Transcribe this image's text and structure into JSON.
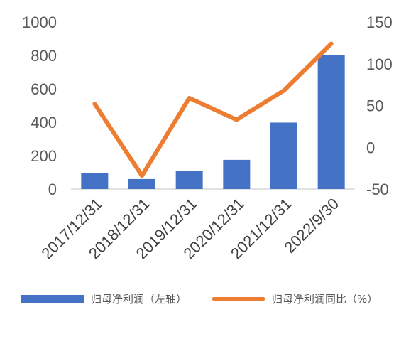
{
  "chart_data": {
    "type": "bar",
    "categories": [
      "2017/12/31",
      "2018/12/31",
      "2019/12/31",
      "2020/12/31",
      "2021/12/31",
      "2022/9/30"
    ],
    "series": [
      {
        "name": "归母净利润（左轴）",
        "type": "bar",
        "axis": "left",
        "color": "#4472C4",
        "values": [
          95,
          60,
          110,
          175,
          398,
          800
        ]
      },
      {
        "name": "归母净利润同比（%）",
        "type": "line",
        "axis": "right",
        "color": "#ED7D31",
        "values": [
          52,
          -34,
          59,
          33,
          68,
          124
        ]
      }
    ],
    "y_left": {
      "ticks": [
        0,
        200,
        400,
        600,
        800,
        1000
      ],
      "ylim": [
        0,
        1000
      ]
    },
    "y_right": {
      "ticks": [
        -50,
        0,
        50,
        100,
        150
      ],
      "ylim": [
        -50,
        150
      ]
    },
    "legend_position": "bottom",
    "grid": false
  }
}
